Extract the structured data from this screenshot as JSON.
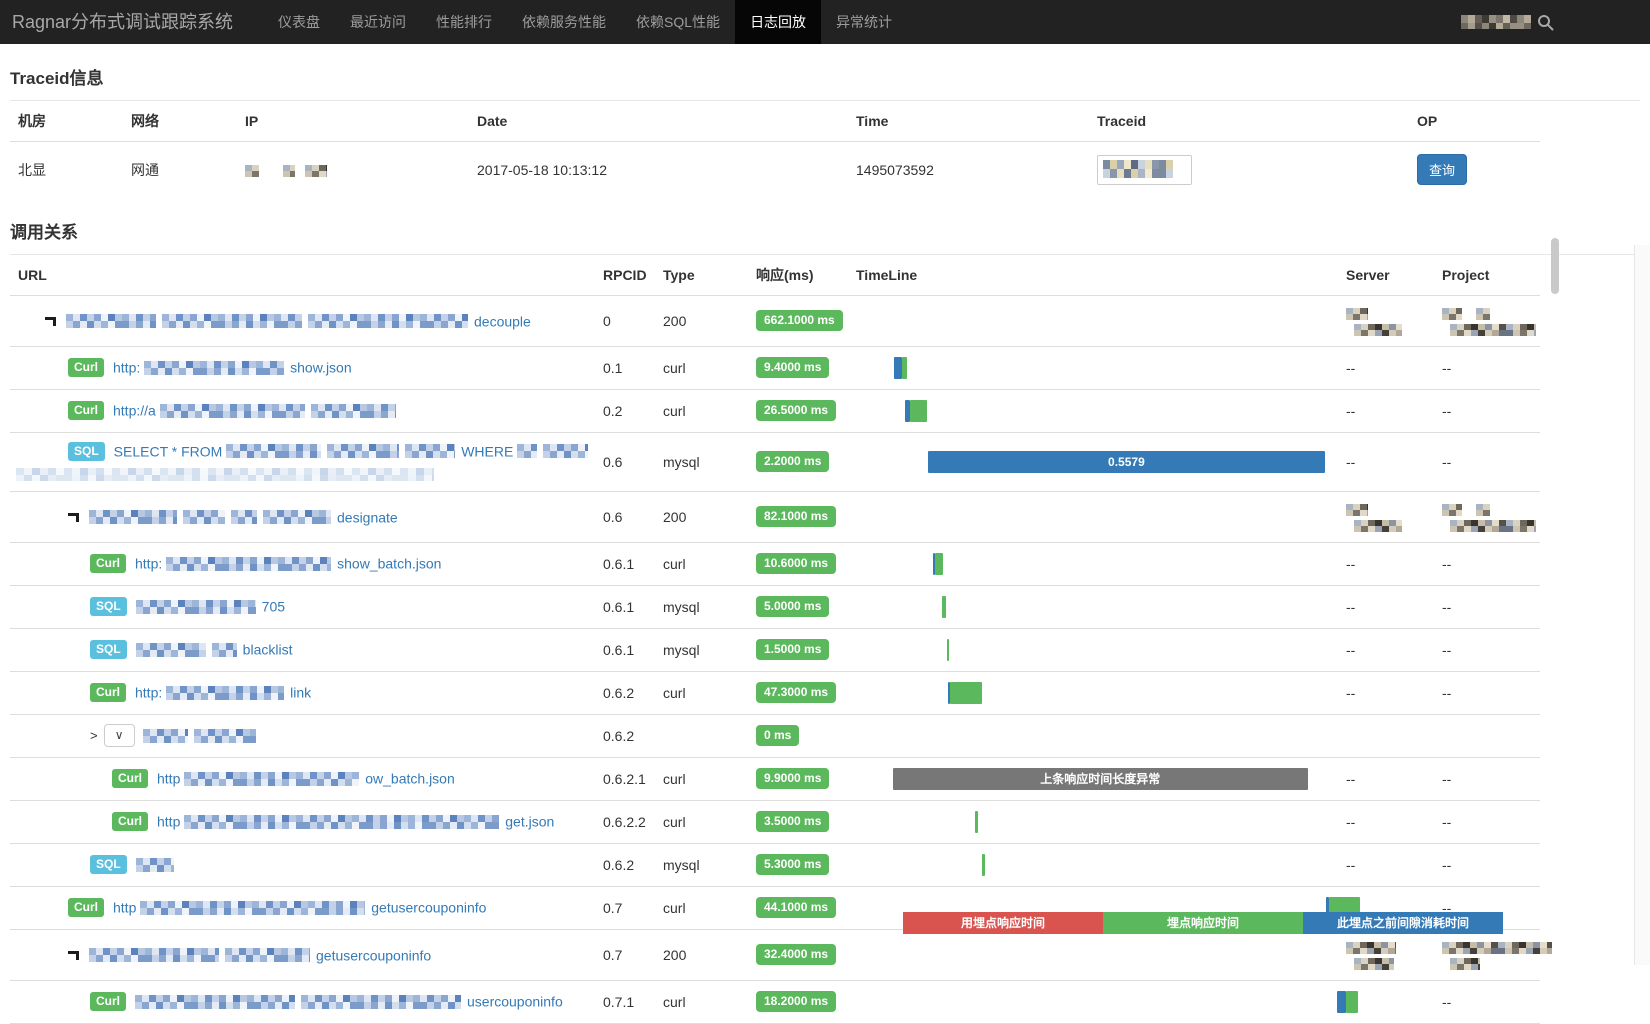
{
  "navbar": {
    "brand": "Ragnar分布式调试跟踪系统",
    "items": [
      {
        "label": "仪表盘"
      },
      {
        "label": "最近访问"
      },
      {
        "label": "性能排行"
      },
      {
        "label": "依赖服务性能"
      },
      {
        "label": "依赖SQL性能"
      },
      {
        "label": "日志回放"
      },
      {
        "label": "异常统计"
      }
    ],
    "active_index": 5,
    "search_icon": "search-icon"
  },
  "traceid_section": {
    "title": "Traceid信息",
    "headers": [
      "机房",
      "网络",
      "IP",
      "Date",
      "Time",
      "Traceid",
      "OP"
    ],
    "row": {
      "idc": "北显",
      "network": "网通",
      "date": "2017-05-18 10:13:12",
      "time": "1495073592",
      "op_label": "查询"
    }
  },
  "calls_section": {
    "title": "调用关系",
    "headers": [
      "URL",
      "RPCID",
      "Type",
      "响应(ms)",
      "TimeLine",
      "Server",
      "Project"
    ],
    "rows": [
      {
        "indent": 1,
        "icon": true,
        "parts": [
          {
            "mz": 90
          },
          {
            "mz": 140
          },
          {
            "mz": 160
          },
          {
            "t": "decouple"
          }
        ],
        "rpcid": "0",
        "type": "200",
        "resp": "662.1000 ms",
        "server_mz": [
          22,
          48
        ],
        "project_mz": [
          20,
          14,
          86
        ],
        "bars": []
      },
      {
        "indent": 2,
        "badge": "Curl",
        "parts": [
          {
            "t": "http:"
          },
          {
            "mz": 140
          },
          {
            "t": "show.json"
          }
        ],
        "rpcid": "0.1",
        "type": "curl",
        "resp": "9.4000 ms",
        "server": "--",
        "project": "--",
        "bars": [
          {
            "c": "blue",
            "l": 0.9,
            "w": 1.7
          },
          {
            "c": "green",
            "l": 2.6,
            "w": 1.0
          }
        ]
      },
      {
        "indent": 2,
        "badge": "Curl",
        "parts": [
          {
            "t": "http://a"
          },
          {
            "mz": 145
          },
          {
            "mz": 85
          }
        ],
        "rpcid": "0.2",
        "type": "curl",
        "resp": "26.5000 ms",
        "server": "--",
        "project": "--",
        "bars": [
          {
            "c": "blue",
            "l": 3.2,
            "w": 1.1
          },
          {
            "c": "green",
            "l": 4.3,
            "w": 3.6
          }
        ]
      },
      {
        "indent": 2,
        "badge": "SQL",
        "parts": [
          {
            "t": "SELECT * FROM"
          },
          {
            "mz": 95
          },
          {
            "mz": 72
          },
          {
            "mz": 50
          },
          {
            "t": "WHERE"
          },
          {
            "mz": 20
          },
          {
            "mz": 45
          }
        ],
        "line2_mz": 418,
        "rpcid": "0.6",
        "type": "mysql",
        "resp": "2.2000 ms",
        "server": "--",
        "project": "--",
        "bars": [
          {
            "c": "blue",
            "l": 8.1,
            "w": 84.4,
            "label": "0.5579"
          }
        ]
      },
      {
        "indent": 2,
        "icon": true,
        "parts": [
          {
            "mz": 88
          },
          {
            "mz": 42
          },
          {
            "mz": 26
          },
          {
            "mz": 68
          },
          {
            "t": "designate"
          }
        ],
        "rpcid": "0.6",
        "type": "200",
        "resp": "82.1000 ms",
        "server_mz": [
          22,
          48
        ],
        "project_mz": [
          20,
          14,
          86
        ],
        "bars": []
      },
      {
        "indent": 3,
        "badge": "Curl",
        "parts": [
          {
            "t": "http:"
          },
          {
            "mz": 165
          },
          {
            "t": "show_batch.json"
          }
        ],
        "rpcid": "0.6.1",
        "type": "curl",
        "resp": "10.6000 ms",
        "server": "--",
        "project": "--",
        "bars": [
          {
            "c": "blue",
            "l": 9.1,
            "w": 0.5
          },
          {
            "c": "green",
            "l": 9.6,
            "w": 1.6
          }
        ]
      },
      {
        "indent": 3,
        "badge": "SQL",
        "parts": [
          {
            "mz": 120
          },
          {
            "t": "705"
          }
        ],
        "rpcid": "0.6.1",
        "type": "mysql",
        "resp": "5.0000 ms",
        "server": "--",
        "project": "--",
        "bars": [
          {
            "c": "green",
            "l": 11.1,
            "w": 0.9
          }
        ]
      },
      {
        "indent": 3,
        "badge": "SQL",
        "parts": [
          {
            "mz": 70
          },
          {
            "mz": 25
          },
          {
            "t": "blacklist"
          }
        ],
        "rpcid": "0.6.1",
        "type": "mysql",
        "resp": "1.5000 ms",
        "server": "--",
        "project": "--",
        "bars": [
          {
            "c": "green",
            "l": 12.1,
            "w": 0.4
          }
        ]
      },
      {
        "indent": 3,
        "badge": "Curl",
        "parts": [
          {
            "t": "http:"
          },
          {
            "mz": 118
          },
          {
            "t": "link"
          }
        ],
        "rpcid": "0.6.2",
        "type": "curl",
        "resp": "47.3000 ms",
        "server": "--",
        "project": "--",
        "bars": [
          {
            "c": "blue",
            "l": 12.3,
            "w": 0.4
          },
          {
            "c": "green",
            "l": 12.7,
            "w": 6.9
          }
        ]
      },
      {
        "indent": 3,
        "dropdown": true,
        "parts": [
          {
            "mz": 45
          },
          {
            "mz": 62
          }
        ],
        "rpcid": "0.6.2",
        "type": "",
        "resp": "0 ms",
        "server": "",
        "project": "",
        "bars": []
      },
      {
        "indent": 4,
        "badge": "Curl",
        "parts": [
          {
            "t": "http"
          },
          {
            "mz": 175
          },
          {
            "t": "ow_batch.json"
          }
        ],
        "rpcid": "0.6.2.1",
        "type": "curl",
        "resp": "9.9000 ms",
        "server": "--",
        "project": "--",
        "bars": [
          {
            "c": "gray",
            "l": 0.6,
            "w": 88.3,
            "label": "上条响应时间长度异常"
          }
        ]
      },
      {
        "indent": 4,
        "badge": "Curl",
        "parts": [
          {
            "t": "http"
          },
          {
            "mz": 315
          },
          {
            "t": "get.json"
          }
        ],
        "rpcid": "0.6.2.2",
        "type": "curl",
        "resp": "3.5000 ms",
        "server": "--",
        "project": "--",
        "bars": [
          {
            "c": "green",
            "l": 18.1,
            "w": 0.7
          }
        ]
      },
      {
        "indent": 3,
        "badge": "SQL",
        "parts": [
          {
            "mz": 38
          }
        ],
        "rpcid": "0.6.2",
        "type": "mysql",
        "resp": "5.3000 ms",
        "server": "--",
        "project": "--",
        "bars": [
          {
            "c": "green",
            "l": 19.6,
            "w": 0.7
          }
        ]
      },
      {
        "indent": 2,
        "badge": "Curl",
        "parts": [
          {
            "t": "http"
          },
          {
            "mz": 225
          },
          {
            "t": "getusercouponinfo"
          }
        ],
        "rpcid": "0.7",
        "type": "curl",
        "resp": "44.1000 ms",
        "server": "--",
        "project": "--",
        "bars": [
          {
            "c": "blue",
            "l": 92.8,
            "w": 0.5
          },
          {
            "c": "green",
            "l": 93.3,
            "w": 6.7
          }
        ]
      },
      {
        "indent": 2,
        "icon": true,
        "parts": [
          {
            "mz": 130
          },
          {
            "mz": 85
          },
          {
            "t": "getusercouponinfo"
          }
        ],
        "rpcid": "0.7",
        "type": "200",
        "resp": "32.4000 ms",
        "server_mz": [
          50,
          40
        ],
        "project_mz": [
          110,
          30
        ],
        "bars": []
      },
      {
        "indent": 3,
        "badge": "Curl",
        "parts": [
          {
            "mz": 160
          },
          {
            "mz": 160
          },
          {
            "t": "usercouponinfo"
          }
        ],
        "rpcid": "0.7.1",
        "type": "curl",
        "resp": "18.2000 ms",
        "server": "--",
        "project": "--",
        "bars": [
          {
            "c": "blue",
            "l": 95.1,
            "w": 1.9
          },
          {
            "c": "green",
            "l": 97.0,
            "w": 2.6
          }
        ]
      }
    ]
  },
  "legend": {
    "items": [
      {
        "label": "用埋点响应时间",
        "color": "#d9534f"
      },
      {
        "label": "埋点响应时间",
        "color": "#5cb85c"
      },
      {
        "label": "此埋点之前间隙消耗时间",
        "color": "#337ab7"
      }
    ]
  },
  "colors": {
    "bar_blue": "#337ab7",
    "bar_green": "#5cb85c",
    "bar_gray": "#777777",
    "badge_success": "#5cb85c",
    "badge_info": "#5bc0de",
    "link": "#337ab7",
    "navbar_bg": "#222222",
    "button_primary": "#337ab7"
  }
}
